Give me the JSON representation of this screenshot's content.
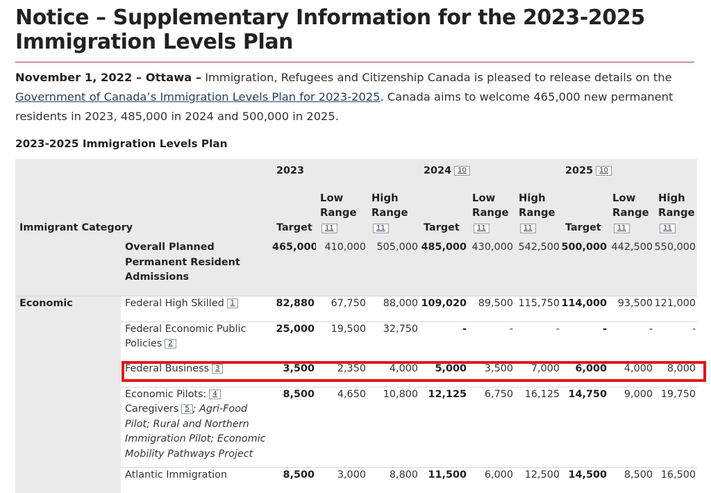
{
  "page": {
    "title": "Notice – Supplementary Information for the 2023-2025 Immigration Levels Plan",
    "accent_color": "#af3c43",
    "highlight_color": "#e4161b"
  },
  "intro": {
    "dateline": "November 1, 2022 – Ottawa –",
    "text_before_link": " Immigration, Refugees and Citizenship Canada is pleased to release details on the ",
    "link_text": "Government of Canada’s Immigration Levels Plan for 2023-2025",
    "text_after_link": ". Canada aims to welcome 465,000 new permanent residents in 2023, 485,000 in 2024 and 500,000 in 2025."
  },
  "table": {
    "caption": "2023-2025 Immigration Levels Plan",
    "category_header": "Immigrant Category",
    "years": [
      {
        "label": "2023",
        "footnote": ""
      },
      {
        "label": "2024",
        "footnote": "10"
      },
      {
        "label": "2025",
        "footnote": "10"
      }
    ],
    "col_target": "Target",
    "col_low": "Low Range",
    "col_high": "High Range",
    "range_footnote": "11",
    "rows": [
      {
        "category": "",
        "subcategory": "Overall Planned Permanent Resident Admissions",
        "footnote": "",
        "values": [
          "465,000",
          "410,000",
          "505,000",
          "485,000",
          "430,000",
          "542,500",
          "500,000",
          "442,500",
          "550,000"
        ]
      },
      {
        "category": "Economic",
        "subcategory": "Federal High Skilled",
        "footnote": "1",
        "values": [
          "82,880",
          "67,750",
          "88,000",
          "109,020",
          "89,500",
          "115,750",
          "114,000",
          "93,500",
          "121,000"
        ]
      },
      {
        "category": "",
        "subcategory": "Federal Economic Public Policies",
        "footnote": "2",
        "values": [
          "25,000",
          "19,500",
          "32,750",
          "-",
          "-",
          "-",
          "-",
          "-",
          "-"
        ]
      },
      {
        "category": "",
        "subcategory": "Federal Business",
        "footnote": "3",
        "values": [
          "3,500",
          "2,350",
          "4,000",
          "5,000",
          "3,500",
          "7,000",
          "6,000",
          "4,000",
          "8,000"
        ]
      },
      {
        "category": "",
        "subcategory": "Economic Pilots:",
        "footnote": "4",
        "subcategory_2": "Caregivers",
        "footnote_2": "5",
        "subcategory_italic": "; Agri-Food Pilot; Rural and Northern Immigration Pilot; Economic Mobility Pathways Project",
        "values": [
          "8,500",
          "4,650",
          "10,800",
          "12,125",
          "6,750",
          "16,125",
          "14,750",
          "9,000",
          "19,750"
        ]
      },
      {
        "category": "",
        "subcategory": "Atlantic Immigration",
        "footnote": "",
        "values": [
          "8,500",
          "3,000",
          "8,800",
          "11,500",
          "6,000",
          "12,500",
          "14,500",
          "8,500",
          "16,500"
        ]
      }
    ]
  }
}
